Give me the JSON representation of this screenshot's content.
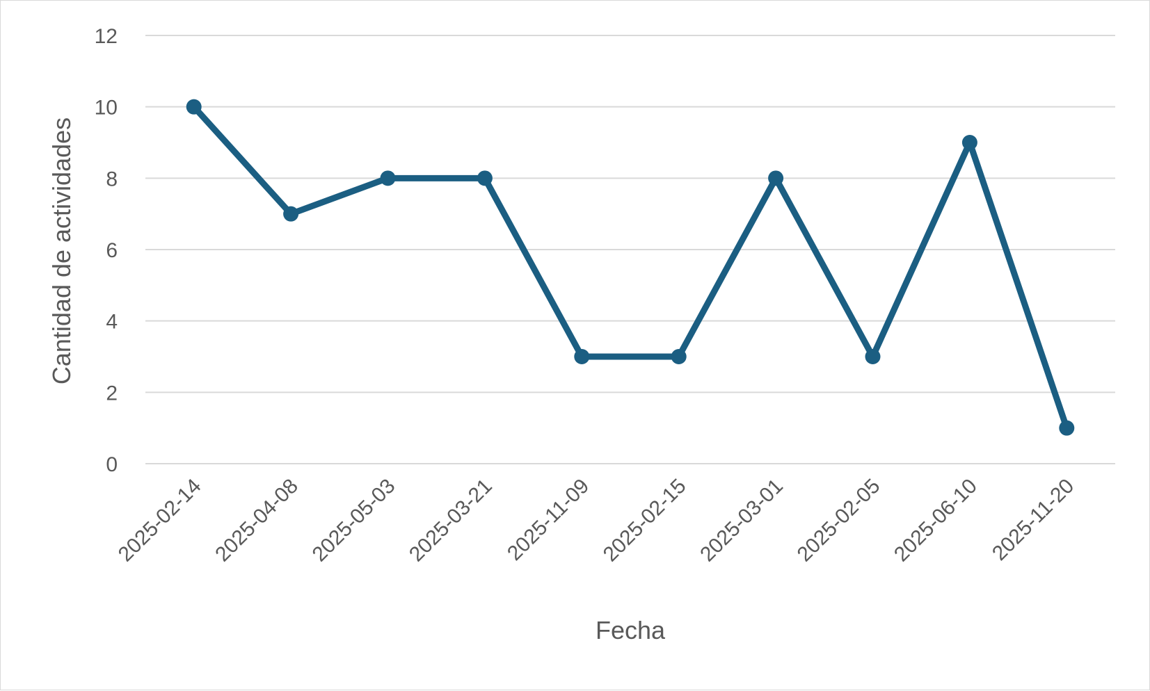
{
  "chart_data": {
    "type": "line",
    "title": "",
    "xlabel": "Fecha",
    "ylabel": "Cantidad de actividades",
    "categories": [
      "2025-02-14",
      "2025-04-08",
      "2025-05-03",
      "2025-03-21",
      "2025-11-09",
      "2025-02-15",
      "2025-03-01",
      "2025-02-05",
      "2025-06-10",
      "2025-11-20"
    ],
    "series": [
      {
        "values": [
          10,
          7,
          8,
          8,
          3,
          3,
          8,
          3,
          9,
          1
        ]
      }
    ],
    "ylim": [
      0,
      12
    ],
    "yticks": [
      0,
      2,
      4,
      6,
      8,
      10,
      12
    ],
    "grid": true,
    "legend": "none",
    "colors": {
      "line": "#1b5e82",
      "grid": "#d9d9d9",
      "text": "#595959"
    }
  }
}
